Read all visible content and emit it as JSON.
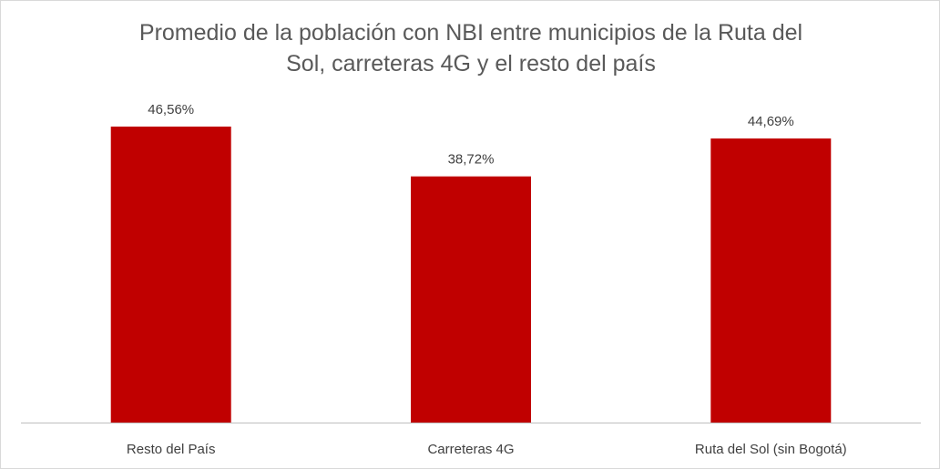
{
  "chart_data": {
    "type": "bar",
    "title_lines": [
      "Promedio de la población con NBI entre municipios de la Ruta del",
      "Sol, carreteras 4G y el resto del país"
    ],
    "categories": [
      "Resto del País",
      "Carreteras 4G",
      "Ruta del Sol (sin Bogotá)"
    ],
    "series": [
      {
        "values": [
          46.56,
          38.72,
          44.69
        ],
        "labels": [
          "46,56%",
          "38,72%",
          "44,69%"
        ]
      }
    ],
    "xlabel": "",
    "ylabel": "",
    "ylim": [
      0,
      50
    ],
    "grid": false,
    "legend": "none",
    "bar_color": "#c00000",
    "axis_color": "#bfbfbf"
  }
}
